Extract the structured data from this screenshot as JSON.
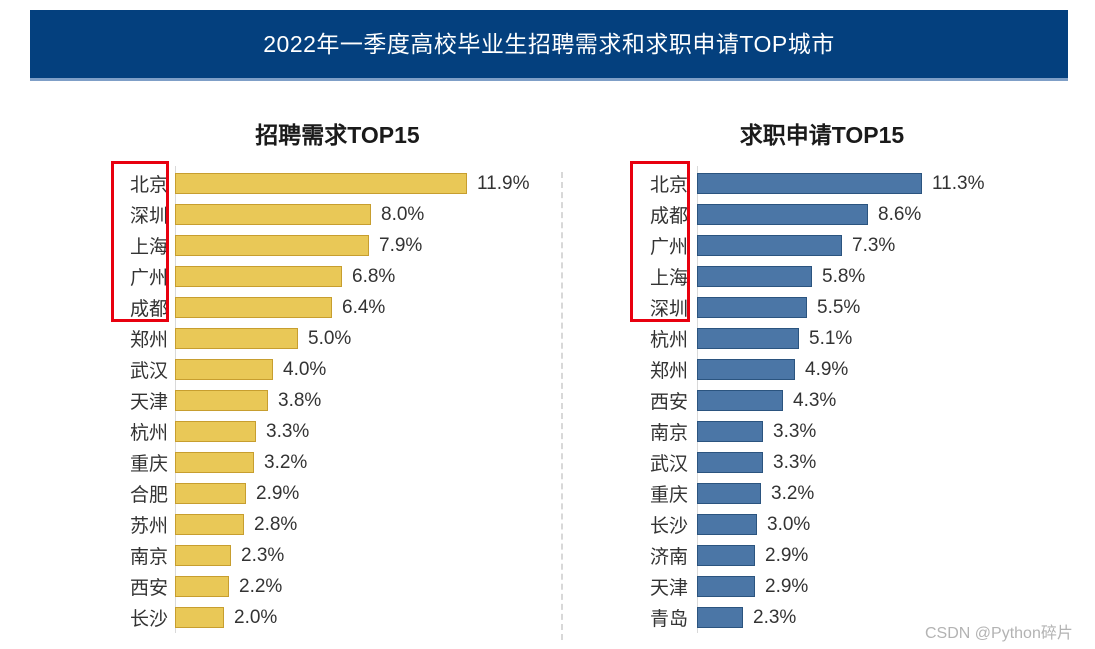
{
  "banner": {
    "title": "2022年一季度高校毕业生招聘需求和求职申请TOP城市",
    "bg_color": "#04407E",
    "underline_color": "#7F9FC7",
    "text_color": "#FFFFFF"
  },
  "watermark": {
    "text": "CSDN @Python碎片",
    "color": "#B3B3B3"
  },
  "chart_data": [
    {
      "type": "bar",
      "orientation": "horizontal",
      "title": "招聘需求TOP15",
      "categories": [
        "北京",
        "深圳",
        "上海",
        "广州",
        "成都",
        "郑州",
        "武汉",
        "天津",
        "杭州",
        "重庆",
        "合肥",
        "苏州",
        "南京",
        "西安",
        "长沙"
      ],
      "values": [
        11.9,
        8.0,
        7.9,
        6.8,
        6.4,
        5.0,
        4.0,
        3.8,
        3.3,
        3.2,
        2.9,
        2.8,
        2.3,
        2.2,
        2.0
      ],
      "value_labels": [
        "11.9%",
        "8.0%",
        "7.9%",
        "6.8%",
        "6.4%",
        "5.0%",
        "4.0%",
        "3.8%",
        "3.3%",
        "3.2%",
        "2.9%",
        "2.8%",
        "2.3%",
        "2.2%",
        "2.0%"
      ],
      "bar_color": "#E9C857",
      "bar_border_color": "#C79E2F",
      "highlight_top_n": 5,
      "highlight_box_color": "#E8000F",
      "xlim": [
        0,
        12.5
      ],
      "grid": false,
      "legend": "none"
    },
    {
      "type": "bar",
      "orientation": "horizontal",
      "title": "求职申请TOP15",
      "categories": [
        "北京",
        "成都",
        "广州",
        "上海",
        "深圳",
        "杭州",
        "郑州",
        "西安",
        "南京",
        "武汉",
        "重庆",
        "长沙",
        "济南",
        "天津",
        "青岛"
      ],
      "values": [
        11.3,
        8.6,
        7.3,
        5.8,
        5.5,
        5.1,
        4.9,
        4.3,
        3.3,
        3.3,
        3.2,
        3.0,
        2.9,
        2.9,
        2.3
      ],
      "value_labels": [
        "11.3%",
        "8.6%",
        "7.3%",
        "5.8%",
        "5.5%",
        "5.1%",
        "4.9%",
        "4.3%",
        "3.3%",
        "3.3%",
        "3.2%",
        "3.0%",
        "2.9%",
        "2.9%",
        "2.3%"
      ],
      "bar_color": "#4B76A6",
      "bar_border_color": "#2B547F",
      "highlight_top_n": 5,
      "highlight_box_color": "#E8000F",
      "xlim": [
        0,
        12.5
      ],
      "grid": false,
      "legend": "none"
    }
  ]
}
